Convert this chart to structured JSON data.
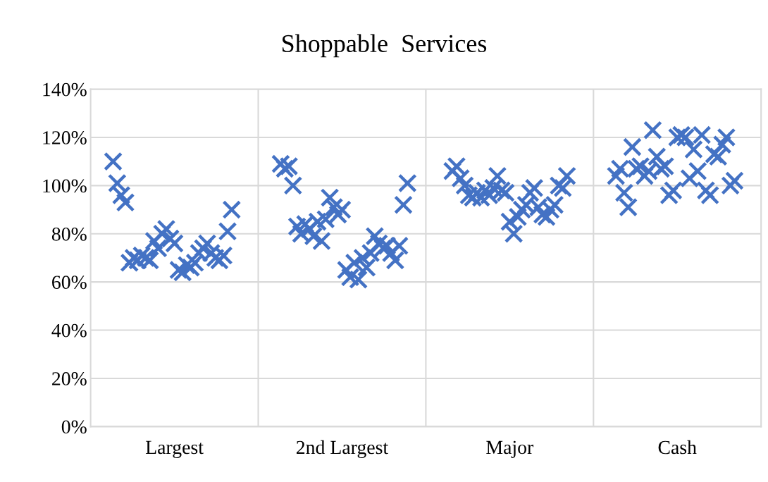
{
  "chart_data": {
    "type": "scatter",
    "title": "Shoppable  Services",
    "categories": [
      null,
      null,
      null,
      null,
      null,
      null,
      null,
      null,
      null,
      null,
      null,
      null,
      null,
      null,
      null,
      null,
      null,
      null,
      null,
      null,
      "Largest",
      null,
      null,
      null,
      null,
      null,
      null,
      null,
      null,
      null,
      null,
      null,
      null,
      null,
      null,
      null,
      null,
      null,
      null,
      null,
      null,
      null,
      null,
      null,
      null,
      null,
      null,
      null,
      null,
      null,
      null,
      null,
      null,
      null,
      null,
      null,
      null,
      null,
      null,
      null,
      null,
      "2nd Largest",
      null,
      null,
      null,
      null,
      null,
      null,
      null,
      null,
      null,
      null,
      null,
      null,
      null,
      null,
      null,
      null,
      null,
      null,
      null,
      null,
      null,
      null,
      null,
      null,
      null,
      null,
      null,
      null,
      null,
      null,
      null,
      null,
      null,
      null,
      null,
      null,
      null,
      null,
      null,
      null,
      "Major",
      null,
      null,
      null,
      null,
      null,
      null,
      null,
      null,
      null,
      null,
      null,
      null,
      null,
      null,
      null,
      null,
      null,
      null,
      null,
      null,
      null,
      null,
      null,
      null,
      null,
      null,
      null,
      null,
      null,
      null,
      null,
      null,
      null,
      null,
      null,
      null,
      null,
      null,
      null,
      null,
      "Cash",
      null,
      null,
      null,
      null,
      null,
      null,
      null,
      null,
      null,
      null,
      null,
      null,
      null,
      null,
      null,
      null,
      null,
      null,
      null,
      null
    ],
    "ylim": [
      0,
      140
    ],
    "yticks": [
      {
        "value": 0,
        "label": "0%"
      },
      {
        "value": 20,
        "label": "20%"
      },
      {
        "value": 40,
        "label": "40%"
      },
      {
        "value": 60,
        "label": "60%"
      },
      {
        "value": 80,
        "label": "80%"
      },
      {
        "value": 100,
        "label": "100%"
      },
      {
        "value": 120,
        "label": "120%"
      },
      {
        "value": 140,
        "label": "140%"
      }
    ],
    "grid": true,
    "marker": "cross",
    "color": "#4472c4",
    "values": [
      null,
      null,
      null,
      null,
      null,
      110,
      101,
      96,
      93,
      68,
      70,
      69,
      71,
      70,
      69,
      77,
      74,
      80,
      82,
      78,
      76,
      65,
      64,
      67,
      66,
      68,
      72,
      74,
      76,
      72,
      70,
      69,
      71,
      81,
      90,
      null,
      null,
      null,
      null,
      null,
      null,
      null,
      null,
      null,
      null,
      null,
      109,
      107,
      108,
      100,
      83,
      80,
      84,
      82,
      79,
      85,
      77,
      86,
      95,
      91,
      88,
      90,
      65,
      62,
      68,
      61,
      70,
      66,
      72,
      79,
      76,
      74,
      75,
      72,
      69,
      75,
      92,
      101,
      null,
      null,
      null,
      null,
      null,
      null,
      null,
      null,
      null,
      null,
      106,
      108,
      103,
      100,
      96,
      95,
      97,
      95,
      98,
      96,
      99,
      104,
      98,
      97,
      85,
      80,
      87,
      90,
      92,
      97,
      99,
      91,
      88,
      87,
      90,
      92,
      100,
      99,
      104,
      null,
      null,
      null,
      null,
      null,
      null,
      null,
      null,
      null,
      null,
      null,
      104,
      107,
      97,
      91,
      116,
      107,
      108,
      104,
      106,
      123,
      112,
      107,
      108,
      96,
      98,
      120,
      121,
      120,
      103,
      115,
      106,
      121,
      98,
      96,
      113,
      112,
      117,
      120,
      100,
      102,
      null,
      null,
      null,
      null,
      null,
      null
    ]
  }
}
